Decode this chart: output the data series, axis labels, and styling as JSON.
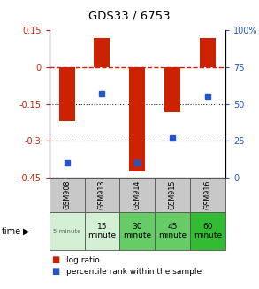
{
  "title": "GDS33 / 6753",
  "samples": [
    "GSM908",
    "GSM913",
    "GSM914",
    "GSM915",
    "GSM916"
  ],
  "time_labels_row1": [
    "5 minute",
    "15",
    "30",
    "45",
    "60"
  ],
  "time_labels_row2": [
    "",
    "minute",
    "minute",
    "minute",
    "minute"
  ],
  "time_colors": [
    "#d4f0d4",
    "#d4f0d4",
    "#66cc66",
    "#66cc66",
    "#33bb33"
  ],
  "log_ratios": [
    -0.22,
    0.12,
    -0.425,
    -0.185,
    0.12
  ],
  "percentiles": [
    10,
    57,
    10,
    27,
    55
  ],
  "ylim_left": [
    -0.45,
    0.15
  ],
  "ylim_right": [
    0,
    100
  ],
  "yticks_left": [
    0.15,
    0,
    -0.15,
    -0.3,
    -0.45
  ],
  "yticks_right": [
    100,
    75,
    50,
    25,
    0
  ],
  "bar_color": "#cc2200",
  "dot_color": "#2255cc",
  "plot_bg": "#ffffff",
  "hline_color": "#cc2200",
  "dotline_color": "#333333",
  "gray_cell": "#c8c8c8"
}
